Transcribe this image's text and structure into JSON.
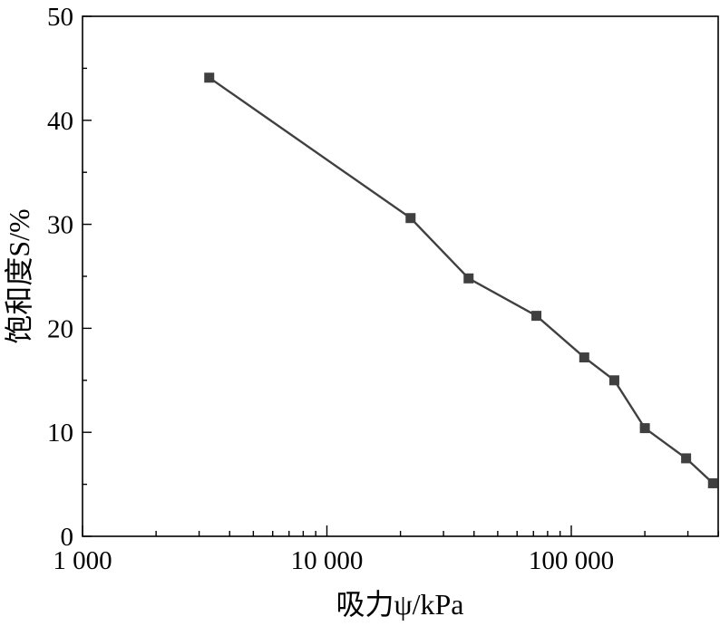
{
  "chart_data": {
    "type": "line",
    "xscale": "log",
    "xlim": [
      1000,
      400000
    ],
    "ylim": [
      0,
      50
    ],
    "x_tick_labels": [
      "1 000",
      "10 000",
      "100 000"
    ],
    "x_major_ticks": [
      1000,
      10000,
      100000
    ],
    "y_ticks": [
      0,
      10,
      20,
      30,
      40,
      50
    ],
    "y_tick_labels": [
      "0",
      "10",
      "20",
      "30",
      "40",
      "50"
    ],
    "xlabel": "吸力ψ/kPa",
    "ylabel": "饱和度S/%",
    "grid": false,
    "legend": "none",
    "marker": "square",
    "line_color": "#404040",
    "series": [
      {
        "x": [
          3300,
          22000,
          38000,
          72000,
          113000,
          150000,
          200000,
          295000,
          380000
        ],
        "y": [
          44.1,
          30.6,
          24.8,
          21.2,
          17.2,
          15.0,
          10.4,
          7.5,
          5.1
        ]
      }
    ]
  }
}
